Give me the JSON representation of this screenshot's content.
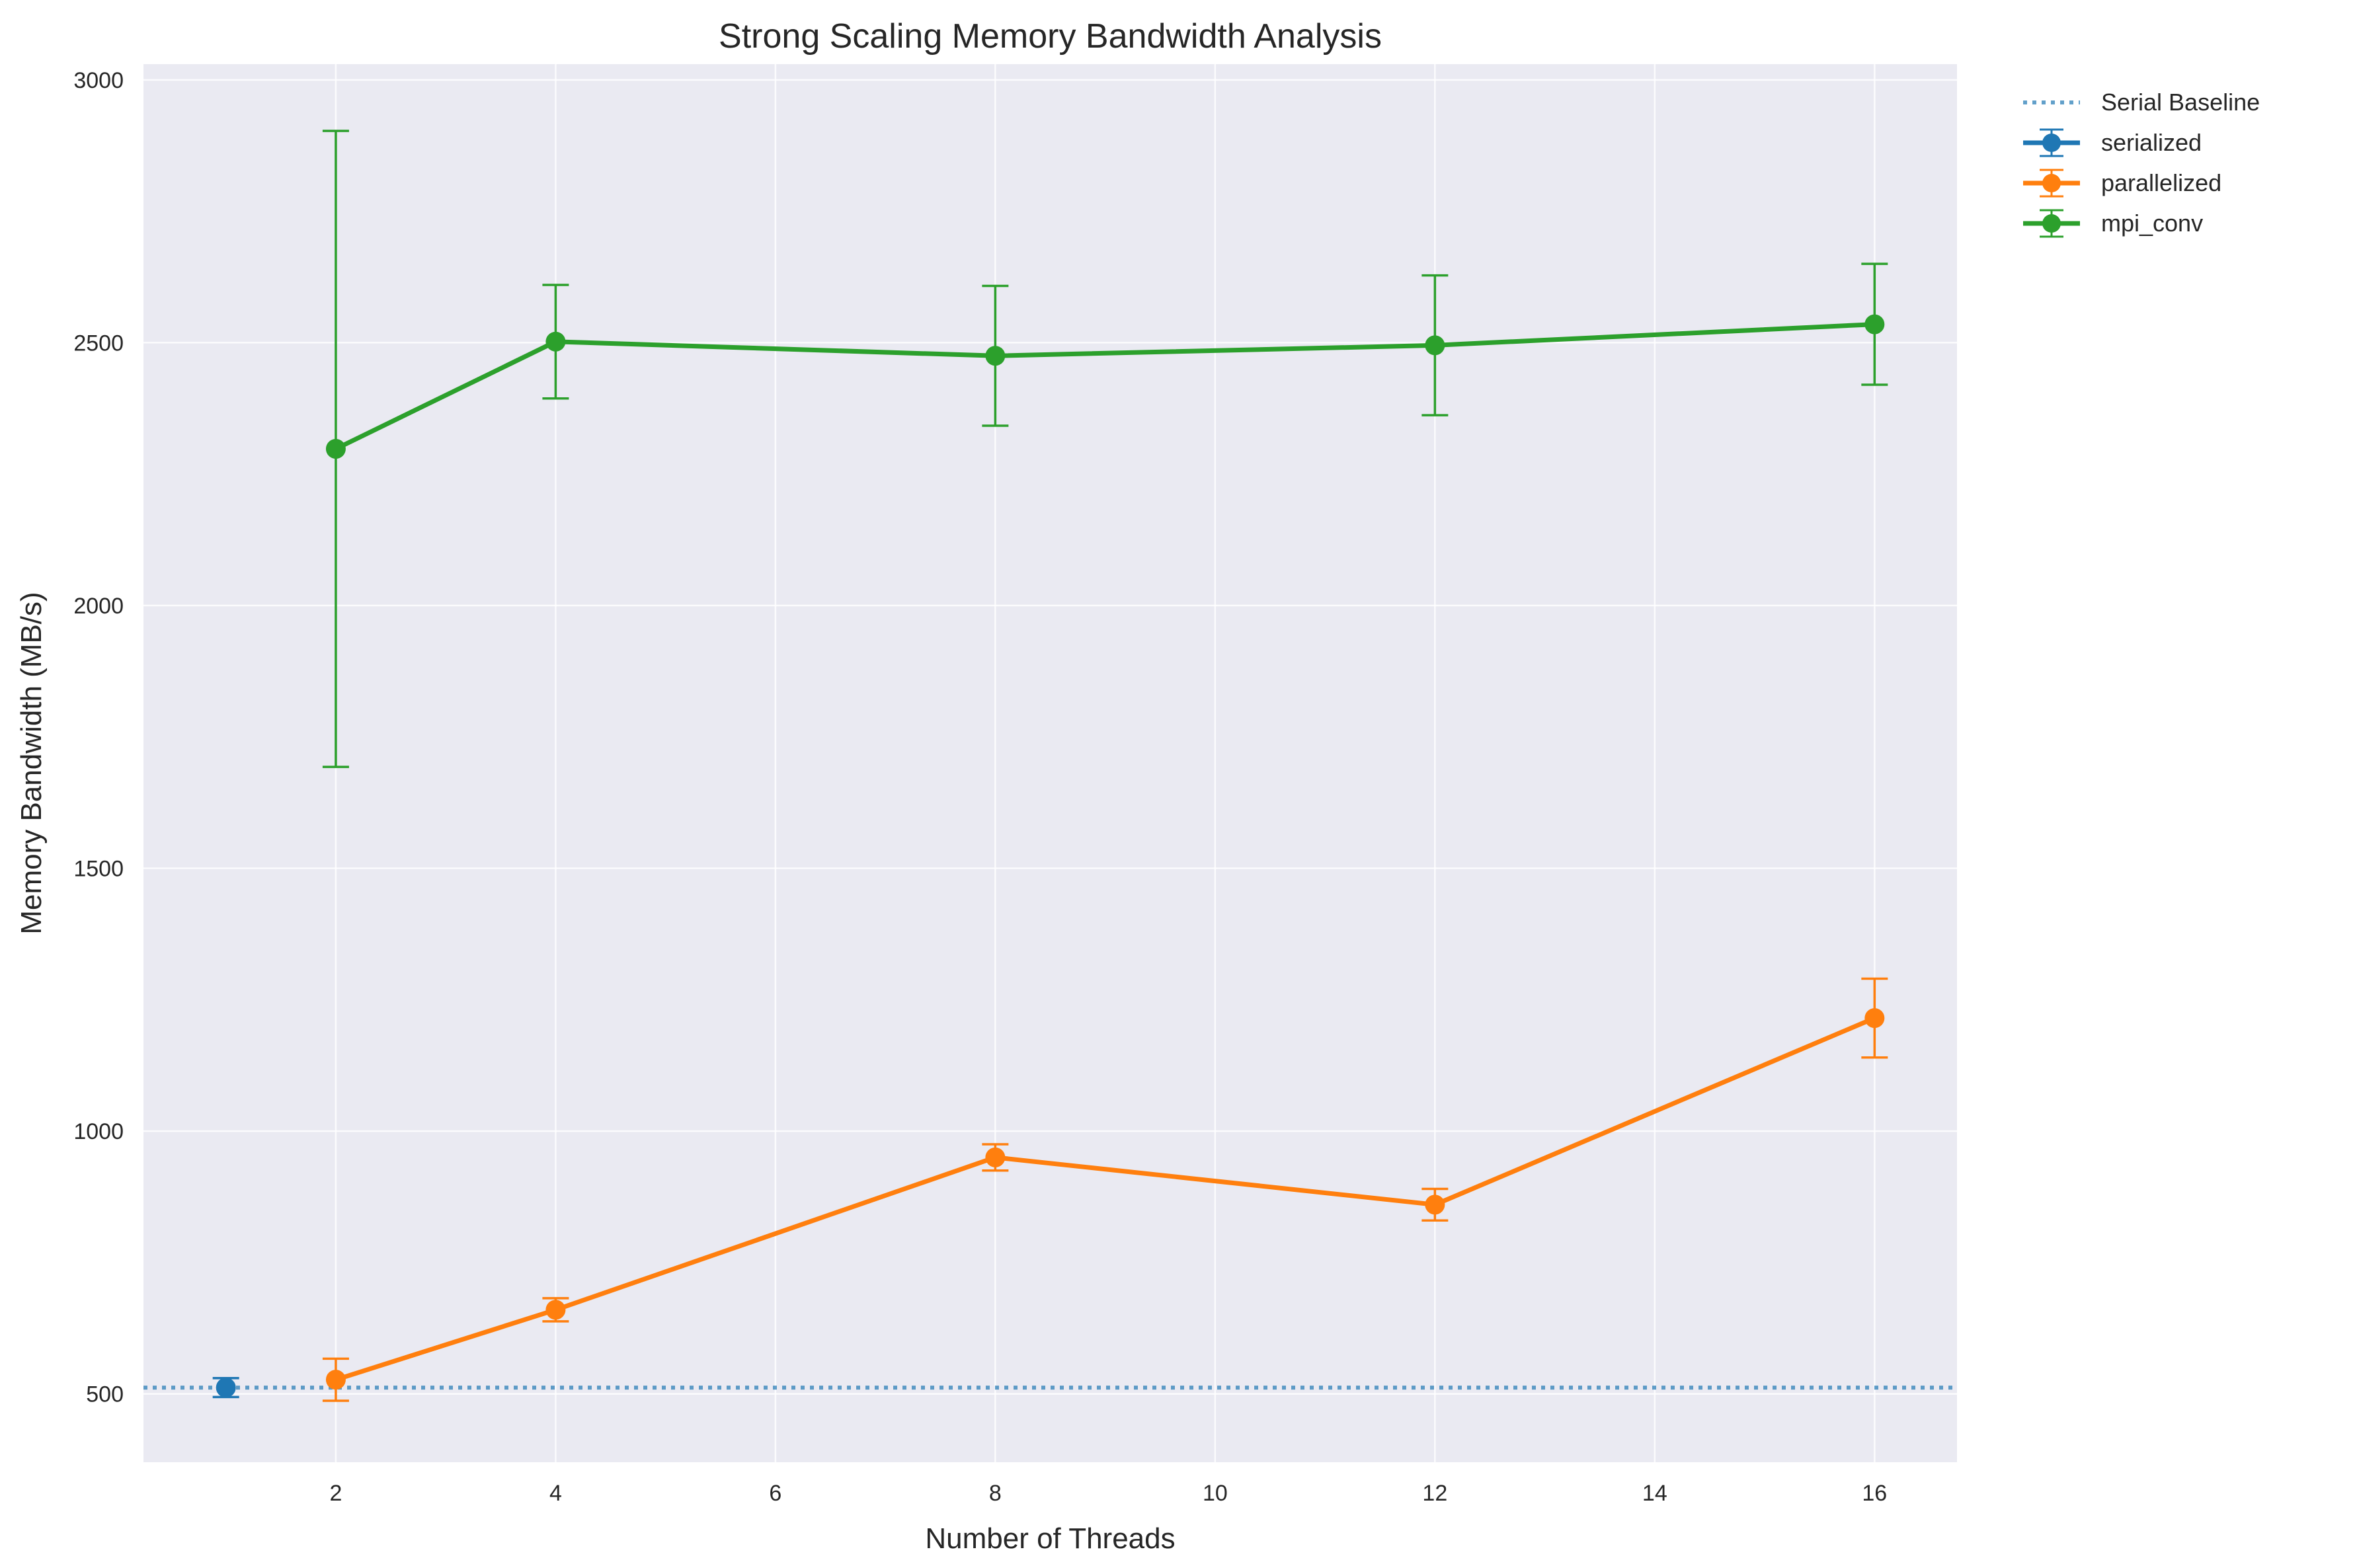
{
  "chart_data": {
    "type": "line",
    "title": "Strong Scaling Memory Bandwidth Analysis",
    "xlabel": "Number of Threads",
    "ylabel": "Memory Bandwidth (MB/s)",
    "xlim": [
      0.25,
      16.75
    ],
    "ylim": [
      370,
      3030
    ],
    "x_ticks": [
      2,
      4,
      6,
      8,
      10,
      12,
      14,
      16
    ],
    "y_ticks": [
      500,
      1000,
      1500,
      2000,
      2500,
      3000
    ],
    "grid": true,
    "legend_position": "outside-top-right",
    "series": [
      {
        "name": "serialized",
        "color": "#1f77b4",
        "x": [
          1
        ],
        "y": [
          512
        ],
        "yerr": [
          18
        ]
      },
      {
        "name": "parallelized",
        "color": "#ff7f0e",
        "x": [
          2,
          4,
          8,
          12,
          16
        ],
        "y": [
          527,
          660,
          950,
          860,
          1215
        ],
        "yerr": [
          40,
          22,
          25,
          30,
          75
        ]
      },
      {
        "name": "mpi_conv",
        "color": "#2ca02c",
        "x": [
          2,
          4,
          8,
          12,
          16
        ],
        "y": [
          2298,
          2502,
          2475,
          2495,
          2535
        ],
        "yerr": [
          605,
          108,
          133,
          133,
          115
        ]
      }
    ],
    "baseline": {
      "name": "Serial Baseline",
      "y": 512,
      "color": "#1f77b4",
      "style": "dotted"
    }
  }
}
